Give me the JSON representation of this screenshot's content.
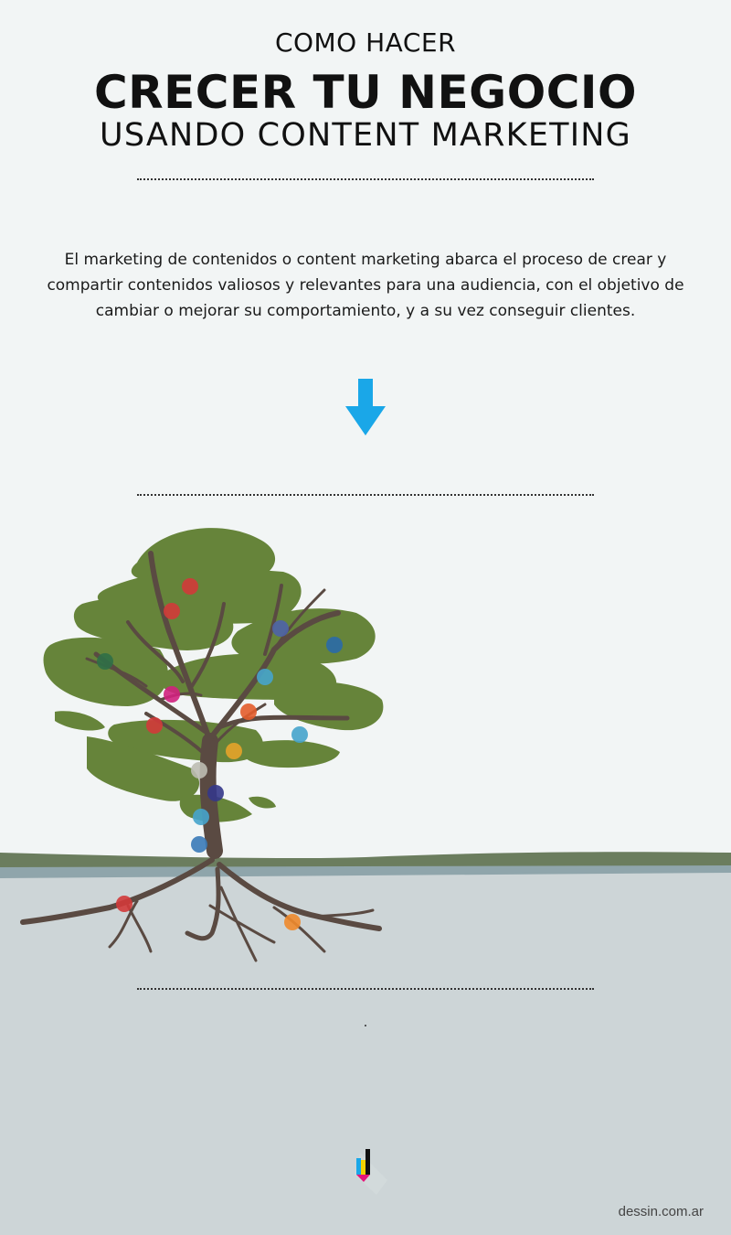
{
  "header": {
    "line1": "COMO HACER",
    "line2": "CRECER TU NEGOCIO",
    "line3": "USANDO CONTENT MARKETING"
  },
  "intro": {
    "text": "El marketing de contenidos o content marketing abarca el proceso de crear y compartir contenidos valiosos y relevantes para una audiencia, con el objetivo de cambiar o mejorar su comportamiento, y a su vez conseguir clientes."
  },
  "icons": {
    "arrow": "arrow-down-icon",
    "logo": "pencil-logo-icon"
  },
  "colors": {
    "background": "#f2f5f5",
    "ground": "#cdd5d7",
    "foliage": "#66843a",
    "trunk": "#5a4a42",
    "arrow": "#1aa7e8"
  },
  "footer": {
    "dot": ".",
    "credit": "dessin.com.ar"
  }
}
